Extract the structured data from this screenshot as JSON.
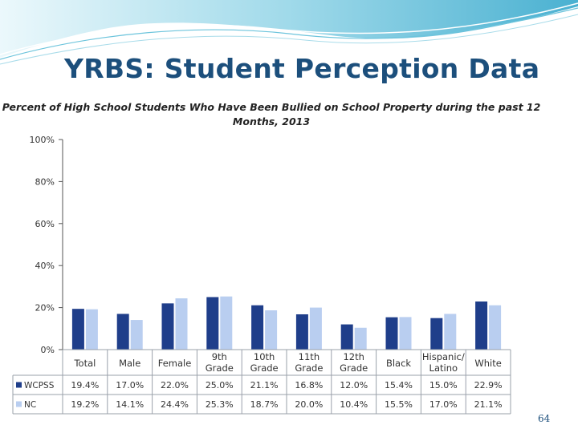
{
  "slide": {
    "title": "YRBS:  Student Perception Data",
    "page_number": "64"
  },
  "colors": {
    "title": "#1c4f7c",
    "swoosh_light": "#bfe6f2",
    "swoosh_dark": "#2aa3c9",
    "wcpss": "#1f3e8a",
    "nc": "#b9cef0",
    "grid_border": "#9aa0aa"
  },
  "chart_data": {
    "type": "bar",
    "title_line1": "Percent of High School Students Who Have Been Bullied on School Property during the past 12",
    "title_line2": "Months, 2013",
    "categories": [
      [
        "Total"
      ],
      [
        "Male"
      ],
      [
        "Female"
      ],
      [
        "9th",
        "Grade"
      ],
      [
        "10th",
        "Grade"
      ],
      [
        "11th",
        "Grade"
      ],
      [
        "12th",
        "Grade"
      ],
      [
        "Black"
      ],
      [
        "Hispanic/",
        "Latino"
      ],
      [
        "White"
      ]
    ],
    "series": [
      {
        "name": "WCPSS",
        "values": [
          19.4,
          17.0,
          22.0,
          25.0,
          21.1,
          16.8,
          12.0,
          15.4,
          15.0,
          22.9
        ],
        "labels": [
          "19.4%",
          "17.0%",
          "22.0%",
          "25.0%",
          "21.1%",
          "16.8%",
          "12.0%",
          "15.4%",
          "15.0%",
          "22.9%"
        ]
      },
      {
        "name": "NC",
        "values": [
          19.2,
          14.1,
          24.4,
          25.3,
          18.7,
          20.0,
          10.4,
          15.5,
          17.0,
          21.1
        ],
        "labels": [
          "19.2%",
          "14.1%",
          "24.4%",
          "25.3%",
          "18.7%",
          "20.0%",
          "10.4%",
          "15.5%",
          "17.0%",
          "21.1%"
        ]
      }
    ],
    "ylim": [
      0,
      100
    ],
    "yticks": [
      "0%",
      "20%",
      "40%",
      "60%",
      "80%",
      "100%"
    ],
    "ytick_values": [
      0,
      20,
      40,
      60,
      80,
      100
    ],
    "grid": false,
    "legend": "data-table"
  }
}
